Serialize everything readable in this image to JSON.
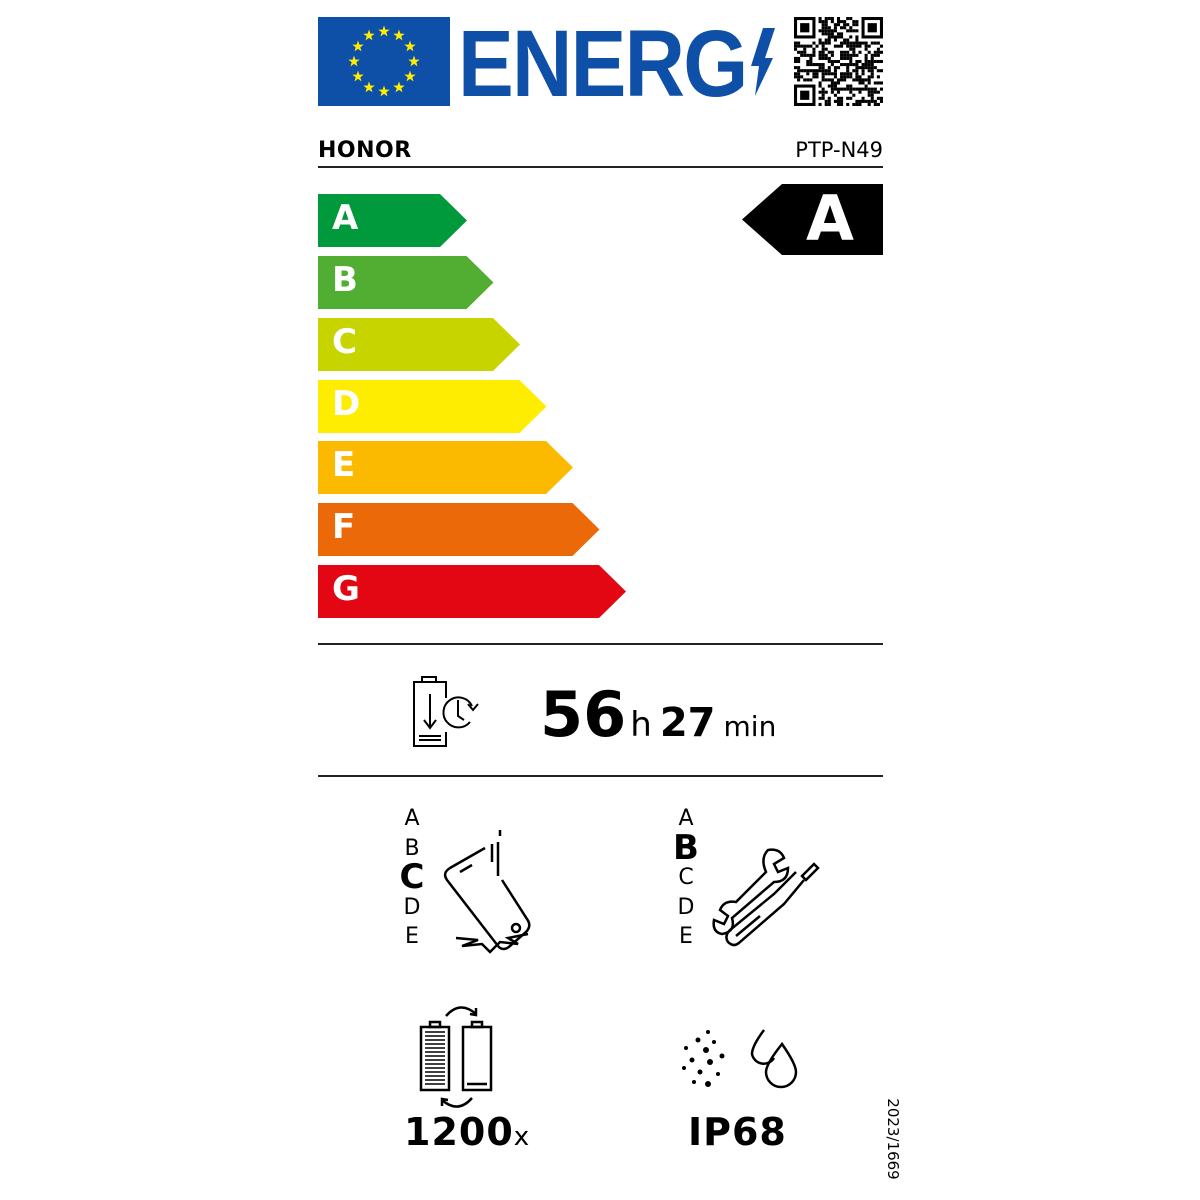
{
  "header": {
    "logo_text": "ENERG",
    "brand": "HONOR",
    "model": "PTP-N49"
  },
  "energy_scale": {
    "classes": [
      {
        "label": "A",
        "color": "#009a3c"
      },
      {
        "label": "B",
        "color": "#52ae32"
      },
      {
        "label": "C",
        "color": "#c8d400"
      },
      {
        "label": "D",
        "color": "#ffed00"
      },
      {
        "label": "E",
        "color": "#fbba00"
      },
      {
        "label": "F",
        "color": "#eb6909"
      },
      {
        "label": "G",
        "color": "#e30613"
      }
    ],
    "rating": "A"
  },
  "battery_endurance": {
    "hours": "56",
    "hours_unit": "h",
    "minutes": "27",
    "minutes_unit": "min",
    "icon": "battery-clock-icon"
  },
  "drop_resistance": {
    "scale": [
      "A",
      "B",
      "C",
      "D",
      "E"
    ],
    "selected": "C",
    "icon": "phone-drop-icon"
  },
  "repairability": {
    "scale": [
      "A",
      "B",
      "C",
      "D",
      "E"
    ],
    "selected": "B",
    "icon": "wrench-screwdriver-icon"
  },
  "battery_cycles": {
    "value": "1200",
    "suffix": "x",
    "icon": "battery-cycle-icon"
  },
  "ingress_protection": {
    "value": "IP68",
    "icon": "dust-water-icon"
  },
  "regulation": "2023/1669"
}
